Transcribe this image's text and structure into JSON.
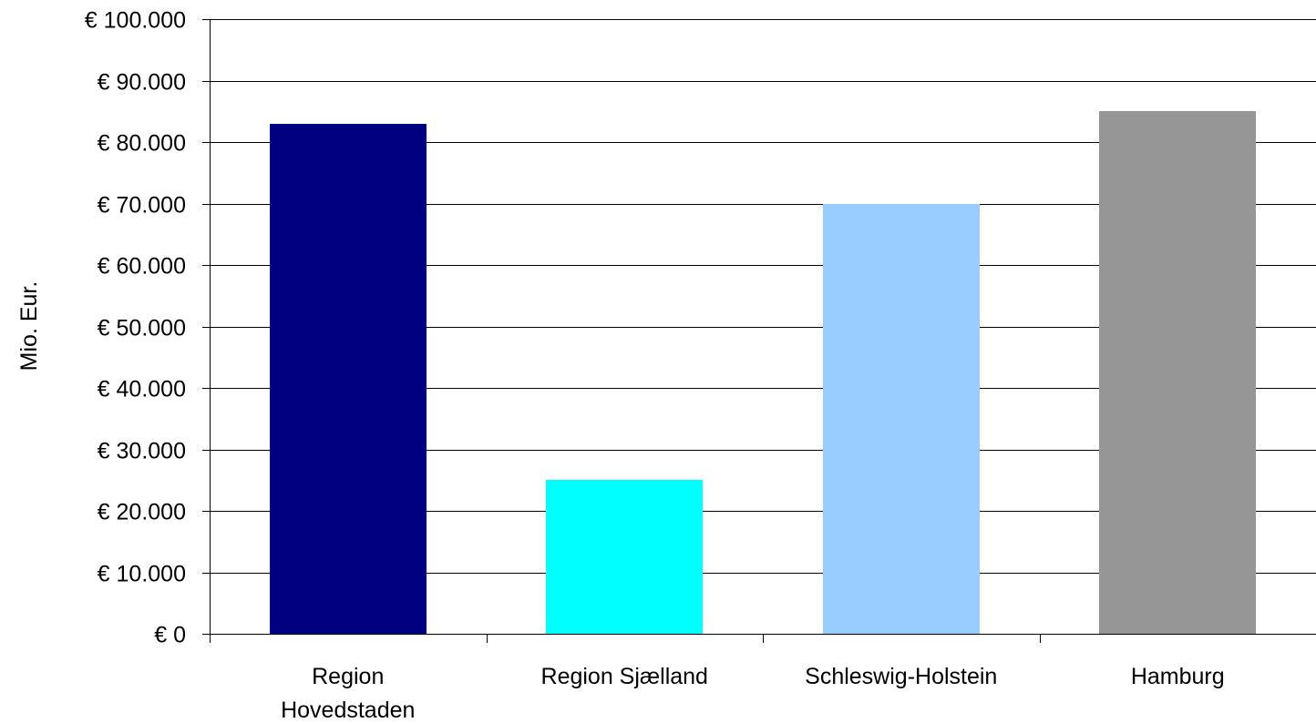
{
  "chart_data": {
    "type": "bar",
    "categories": [
      [
        "Region",
        "Hovedstaden"
      ],
      [
        "Region Sjælland"
      ],
      [
        "Schleswig-Holstein"
      ],
      [
        "Hamburg"
      ]
    ],
    "values": [
      83000,
      25000,
      70000,
      85000
    ],
    "bar_colors": [
      "#000080",
      "#00FFFF",
      "#99CCFF",
      "#969696"
    ],
    "ylabel": "Mio. Eur.",
    "xlabel": "",
    "ylim": [
      0,
      100000
    ],
    "y_ticks": [
      0,
      10000,
      20000,
      30000,
      40000,
      50000,
      60000,
      70000,
      80000,
      90000,
      100000
    ],
    "y_tick_labels": [
      "€ 0",
      "€ 10.000",
      "€ 20.000",
      "€ 30.000",
      "€ 40.000",
      "€ 50.000",
      "€ 60.000",
      "€ 70.000",
      "€ 80.000",
      "€ 90.000",
      "€ 100.000"
    ],
    "grid": true,
    "legend": "none"
  }
}
